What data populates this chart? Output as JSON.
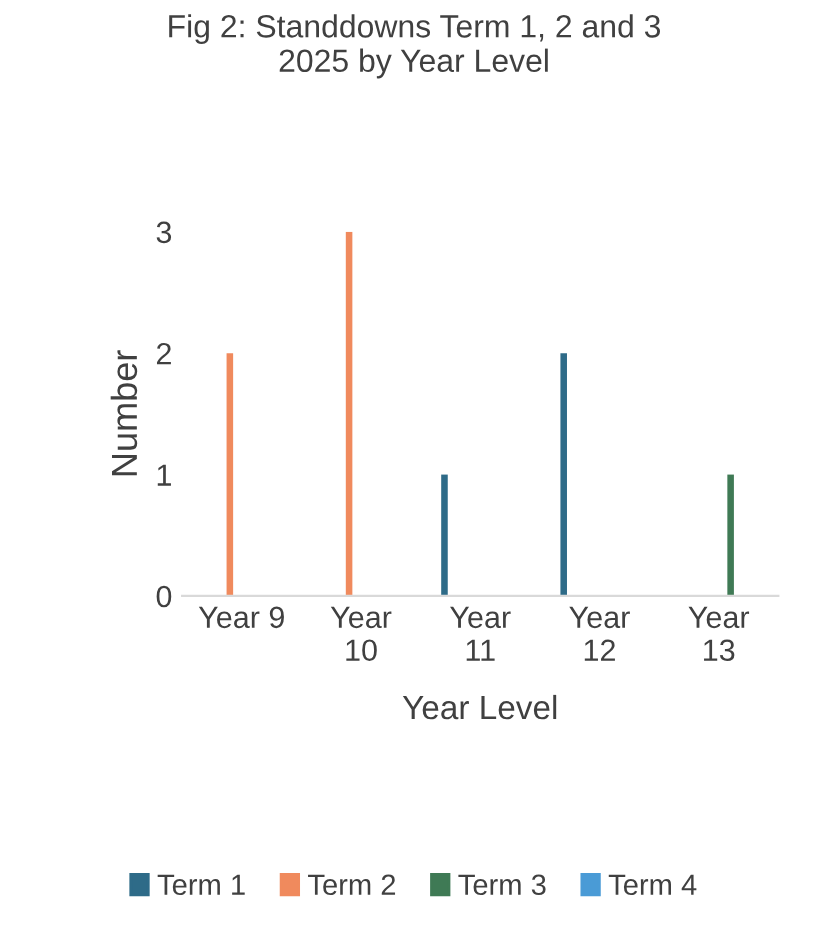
{
  "chart_data": {
    "type": "bar",
    "title": "Fig 2: Standdowns Term 1, 2 and 3\n2025 by Year Level",
    "xlabel": "Year Level",
    "ylabel": "Number",
    "categories": [
      "Year 9",
      "Year\n10",
      "Year\n11",
      "Year\n12",
      "Year\n13"
    ],
    "series": [
      {
        "name": "Term 1",
        "color": "#2e6b88",
        "values": [
          null,
          null,
          1,
          2,
          null
        ]
      },
      {
        "name": "Term 2",
        "color": "#f08a5d",
        "values": [
          2,
          3,
          null,
          null,
          null
        ]
      },
      {
        "name": "Term 3",
        "color": "#3f7a55",
        "values": [
          null,
          null,
          null,
          null,
          1
        ]
      },
      {
        "name": "Term 4",
        "color": "#4a9bd6",
        "values": [
          null,
          null,
          null,
          null,
          null
        ]
      }
    ],
    "ylim": [
      0,
      3
    ],
    "yticks": [
      0,
      1,
      2,
      3
    ],
    "grid": false,
    "legend": "bottom"
  }
}
